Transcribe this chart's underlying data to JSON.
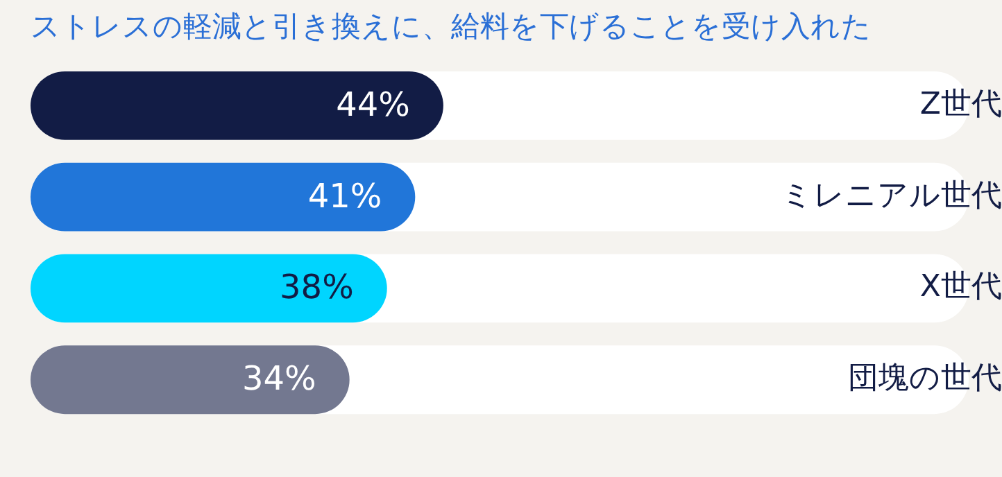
{
  "chart_data": {
    "type": "bar",
    "orientation": "horizontal",
    "title": "ストレスの軽減と引き換えに、給料を下げることを受け入れた",
    "categories": [
      "Z世代",
      "ミレニアル世代",
      "X世代",
      "団塊の世代"
    ],
    "values": [
      44,
      41,
      38,
      34
    ],
    "colors": [
      "#121c45",
      "#2176d9",
      "#00d5ff",
      "#737890"
    ],
    "value_labels": [
      "44%",
      "41%",
      "38%",
      "34%"
    ],
    "xlim": [
      0,
      100
    ],
    "tick_labels": "y",
    "legend": false
  }
}
